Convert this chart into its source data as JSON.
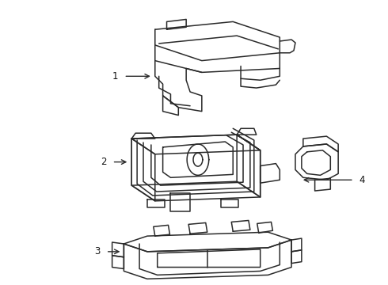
{
  "background_color": "#ffffff",
  "line_color": "#2a2a2a",
  "line_width": 1.1,
  "label_color": "#111111",
  "label_fontsize": 8.5
}
